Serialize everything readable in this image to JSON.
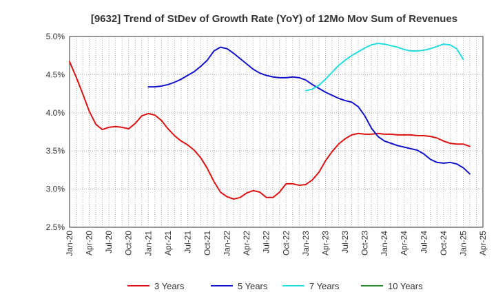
{
  "chart_data": {
    "type": "line",
    "title": "[9632]  Trend of StDev of Growth Rate (YoY) of 12Mo Mov Sum of Revenues",
    "xlabel": "",
    "ylabel": "",
    "ylim": [
      2.5,
      5.0
    ],
    "grid": true,
    "legend_position": "bottom",
    "x_tick_labels": [
      "Jan-20",
      "Apr-20",
      "Jul-20",
      "Oct-20",
      "Jan-21",
      "Apr-21",
      "Jul-21",
      "Oct-21",
      "Jan-22",
      "Apr-22",
      "Jul-22",
      "Oct-22",
      "Jan-23",
      "Apr-23",
      "Jul-23",
      "Oct-23",
      "Jan-24",
      "Apr-24",
      "Jul-24",
      "Oct-24",
      "Jan-25",
      "Apr-25"
    ],
    "y_ticks": [
      2.5,
      3.0,
      3.5,
      4.0,
      4.5,
      5.0
    ],
    "y_tick_labels": [
      "2.5%",
      "3.0%",
      "3.5%",
      "4.0%",
      "4.5%",
      "5.0%"
    ],
    "x_start_month": "Jan-20",
    "x_month_count": 63,
    "series": [
      {
        "name": "3 Years",
        "color": "#dd1111",
        "start_index": 0,
        "values": [
          4.67,
          4.47,
          4.25,
          4.02,
          3.85,
          3.78,
          3.81,
          3.82,
          3.81,
          3.79,
          3.86,
          3.96,
          3.99,
          3.97,
          3.9,
          3.79,
          3.7,
          3.63,
          3.58,
          3.51,
          3.41,
          3.27,
          3.1,
          2.96,
          2.9,
          2.87,
          2.89,
          2.95,
          2.98,
          2.96,
          2.89,
          2.89,
          2.96,
          3.07,
          3.07,
          3.05,
          3.06,
          3.12,
          3.22,
          3.37,
          3.49,
          3.59,
          3.66,
          3.71,
          3.73,
          3.72,
          3.72,
          3.73,
          3.72,
          3.72,
          3.71,
          3.71,
          3.71,
          3.7,
          3.7,
          3.69,
          3.67,
          3.63,
          3.6,
          3.59,
          3.59,
          3.56
        ]
      },
      {
        "name": "5 Years",
        "color": "#1111cc",
        "start_index": 12,
        "values": [
          4.34,
          4.34,
          4.35,
          4.37,
          4.4,
          4.44,
          4.49,
          4.54,
          4.61,
          4.69,
          4.81,
          4.86,
          4.84,
          4.78,
          4.71,
          4.64,
          4.57,
          4.52,
          4.49,
          4.47,
          4.46,
          4.46,
          4.47,
          4.46,
          4.43,
          4.37,
          4.32,
          4.27,
          4.23,
          4.19,
          4.16,
          4.14,
          4.08,
          3.96,
          3.8,
          3.69,
          3.63,
          3.6,
          3.57,
          3.55,
          3.53,
          3.51,
          3.46,
          3.39,
          3.35,
          3.34,
          3.35,
          3.33,
          3.28,
          3.2
        ]
      },
      {
        "name": "7 Years",
        "color": "#22dddd",
        "start_index": 36,
        "values": [
          4.29,
          4.31,
          4.36,
          4.44,
          4.53,
          4.62,
          4.69,
          4.75,
          4.8,
          4.85,
          4.89,
          4.91,
          4.9,
          4.88,
          4.86,
          4.83,
          4.81,
          4.81,
          4.82,
          4.84,
          4.87,
          4.9,
          4.89,
          4.84,
          4.7
        ]
      },
      {
        "name": "10 Years",
        "color": "#228822",
        "start_index": 0,
        "values": []
      }
    ]
  }
}
